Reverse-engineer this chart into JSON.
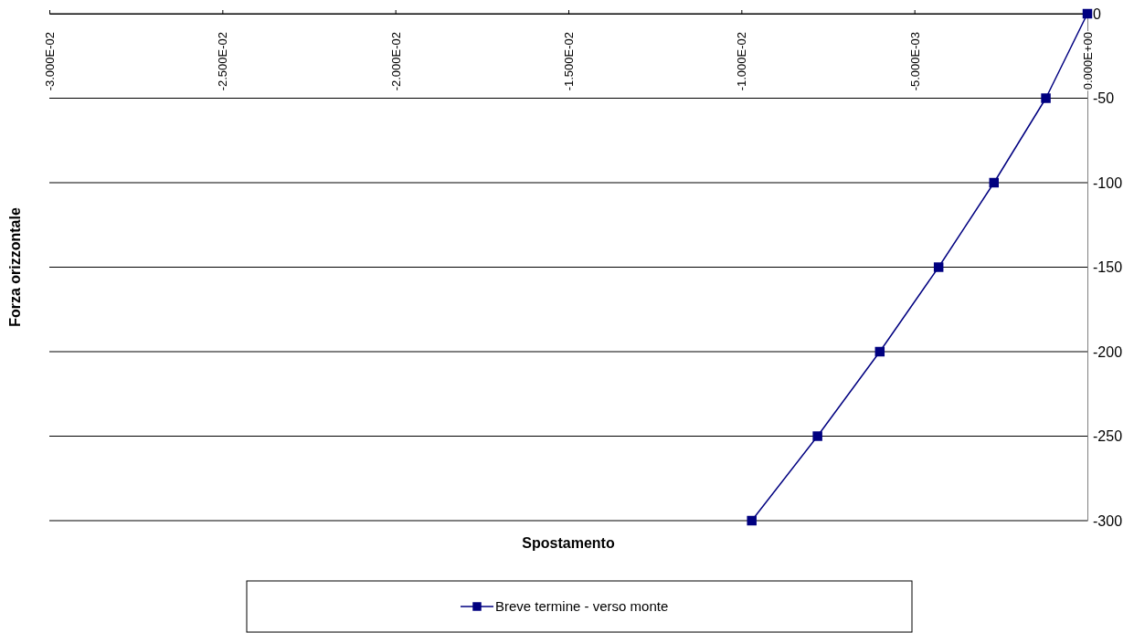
{
  "chart_data": {
    "type": "line",
    "xlabel": "Spostamento",
    "ylabel": "Forza orizzontale",
    "x": [
      0,
      -0.0012,
      -0.0027,
      -0.0043,
      -0.006,
      -0.0078,
      -0.0097
    ],
    "series": [
      {
        "name": "Breve termine - verso monte",
        "color": "#000080",
        "values": [
          0,
          -50,
          -100,
          -150,
          -200,
          -250,
          -300
        ]
      }
    ],
    "xlim": [
      -0.03,
      0
    ],
    "ylim": [
      -300,
      0
    ],
    "xticks": [
      {
        "value": -0.03,
        "label": "-3.000E-02"
      },
      {
        "value": -0.025,
        "label": "-2.500E-02"
      },
      {
        "value": -0.02,
        "label": "-2.000E-02"
      },
      {
        "value": -0.015,
        "label": "-1.500E-02"
      },
      {
        "value": -0.01,
        "label": "-1.000E-02"
      },
      {
        "value": -0.005,
        "label": "-5.000E-03"
      },
      {
        "value": 0,
        "label": "0.000E+00"
      }
    ],
    "yticks": [
      0,
      -50,
      -100,
      -150,
      -200,
      -250,
      -300
    ],
    "grid": "y",
    "legend": "bottom",
    "marker": "square",
    "line_style": "solid"
  }
}
